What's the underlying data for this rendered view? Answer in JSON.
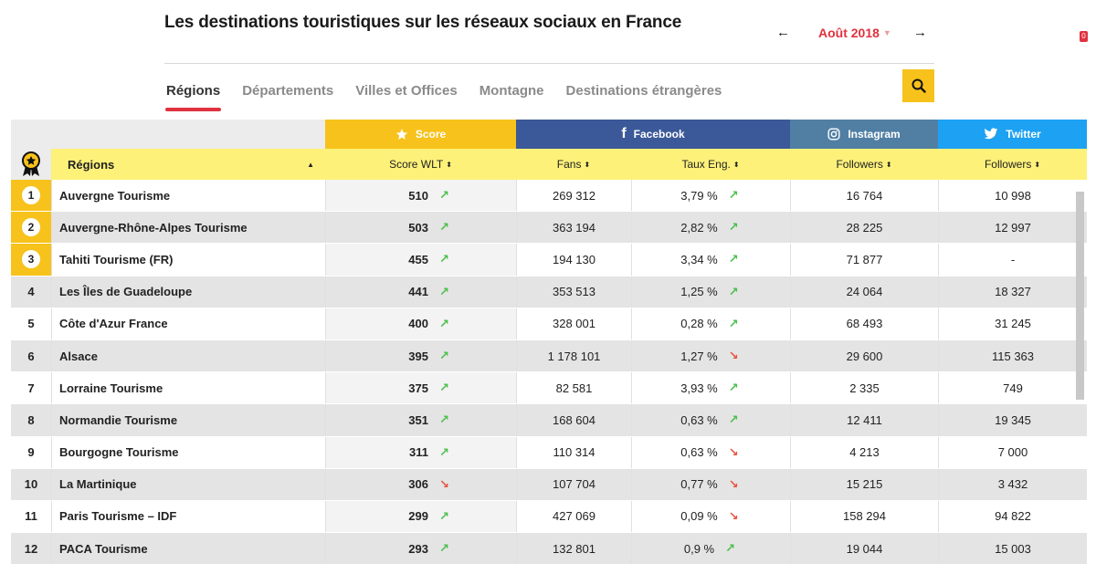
{
  "page": {
    "title": "Les destinations touristiques sur les réseaux sociaux en France",
    "month": "Août 2018",
    "prev_arrow": "🡐",
    "next_arrow": "🡒",
    "badge_count": "0"
  },
  "tabs": [
    {
      "label": "Régions",
      "active": true
    },
    {
      "label": "Départements",
      "active": false
    },
    {
      "label": "Villes et Offices",
      "active": false
    },
    {
      "label": "Montagne",
      "active": false
    },
    {
      "label": "Destinations étrangères",
      "active": false
    }
  ],
  "table": {
    "groups": {
      "score": "Score",
      "facebook": "Facebook",
      "instagram": "Instagram",
      "twitter": "Twitter"
    },
    "columns": {
      "region": "Régions",
      "score_wlt": "Score WLT",
      "fans": "Fans",
      "taux": "Taux Eng.",
      "ig_followers": "Followers",
      "tw_followers": "Followers"
    },
    "colors": {
      "score": "#f7c21b",
      "facebook": "#3b5998",
      "instagram": "#517fa4",
      "twitter": "#1da1f2",
      "header_yellow": "#fdf17a"
    },
    "rows": [
      {
        "rank": "1",
        "name": "Auvergne Tourisme",
        "score": "510",
        "score_trend": "up",
        "fans": "269 312",
        "taux": "3,79 %",
        "taux_trend": "up",
        "ig": "16 764",
        "tw": "10 998"
      },
      {
        "rank": "2",
        "name": "Auvergne-Rhône-Alpes Tourisme",
        "score": "503",
        "score_trend": "up",
        "fans": "363 194",
        "taux": "2,82 %",
        "taux_trend": "up",
        "ig": "28 225",
        "tw": "12 997"
      },
      {
        "rank": "3",
        "name": "Tahiti Tourisme (FR)",
        "score": "455",
        "score_trend": "up",
        "fans": "194 130",
        "taux": "3,34 %",
        "taux_trend": "up",
        "ig": "71 877",
        "tw": "-"
      },
      {
        "rank": "4",
        "name": "Les Îles de Guadeloupe",
        "score": "441",
        "score_trend": "up",
        "fans": "353 513",
        "taux": "1,25 %",
        "taux_trend": "up",
        "ig": "24 064",
        "tw": "18 327"
      },
      {
        "rank": "5",
        "name": "Côte d'Azur France",
        "score": "400",
        "score_trend": "up",
        "fans": "328 001",
        "taux": "0,28 %",
        "taux_trend": "up",
        "ig": "68 493",
        "tw": "31 245"
      },
      {
        "rank": "6",
        "name": "Alsace",
        "score": "395",
        "score_trend": "up",
        "fans": "1 178 101",
        "taux": "1,27 %",
        "taux_trend": "down",
        "ig": "29 600",
        "tw": "115 363"
      },
      {
        "rank": "7",
        "name": "Lorraine Tourisme",
        "score": "375",
        "score_trend": "up",
        "fans": "82 581",
        "taux": "3,93 %",
        "taux_trend": "up",
        "ig": "2 335",
        "tw": "749"
      },
      {
        "rank": "8",
        "name": "Normandie Tourisme",
        "score": "351",
        "score_trend": "up",
        "fans": "168 604",
        "taux": "0,63 %",
        "taux_trend": "up",
        "ig": "12 411",
        "tw": "19 345"
      },
      {
        "rank": "9",
        "name": "Bourgogne Tourisme",
        "score": "311",
        "score_trend": "up",
        "fans": "110 314",
        "taux": "0,63 %",
        "taux_trend": "down",
        "ig": "4 213",
        "tw": "7 000"
      },
      {
        "rank": "10",
        "name": "La Martinique",
        "score": "306",
        "score_trend": "down",
        "fans": "107 704",
        "taux": "0,77 %",
        "taux_trend": "down",
        "ig": "15 215",
        "tw": "3 432"
      },
      {
        "rank": "11",
        "name": "Paris Tourisme – IDF",
        "score": "299",
        "score_trend": "up",
        "fans": "427 069",
        "taux": "0,09 %",
        "taux_trend": "down",
        "ig": "158 294",
        "tw": "94 822"
      },
      {
        "rank": "12",
        "name": "PACA Tourisme",
        "score": "293",
        "score_trend": "up",
        "fans": "132 801",
        "taux": "0,9 %",
        "taux_trend": "up",
        "ig": "19 044",
        "tw": "15 003"
      }
    ]
  }
}
